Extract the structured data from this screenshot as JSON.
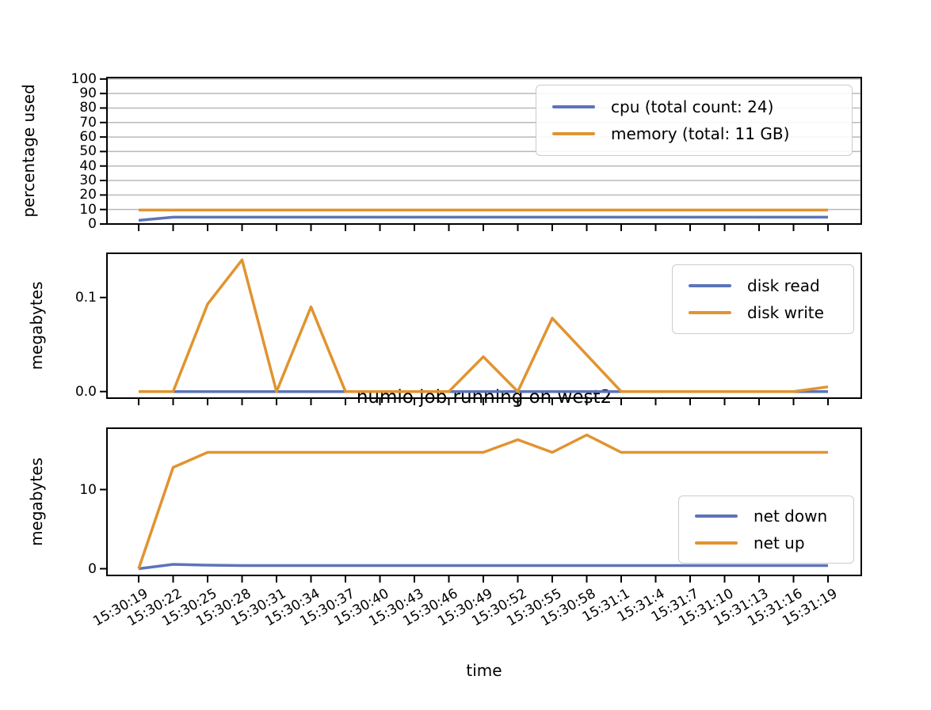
{
  "figure": {
    "title": "numio job running on west2",
    "xlabel": "time",
    "colors": {
      "blue": "#5c74ba",
      "orange": "#e09430",
      "grid": "#b9b9b9",
      "spine": "#000000"
    }
  },
  "x_labels": [
    "15:30:19",
    "15:30:22",
    "15:30:25",
    "15:30:28",
    "15:30:31",
    "15:30:34",
    "15:30:37",
    "15:30:40",
    "15:30:43",
    "15:30:46",
    "15:30:49",
    "15:30:52",
    "15:30:55",
    "15:30:58",
    "15:31:1",
    "15:31:4",
    "15:31:7",
    "15:31:10",
    "15:31:13",
    "15:31:16",
    "15:31:19"
  ],
  "chart_data": [
    {
      "type": "line",
      "ylabel": "percentage used",
      "ylim": [
        0,
        101
      ],
      "grid": true,
      "legend_position": "upper right",
      "ytick_values": [
        0,
        10,
        20,
        30,
        40,
        50,
        60,
        70,
        80,
        90,
        100
      ],
      "ytick_labels": [
        "0",
        "10",
        "20",
        "30",
        "40",
        "50",
        "60",
        "70",
        "80",
        "90",
        "100"
      ],
      "series": [
        {
          "key": "cpu",
          "name": "cpu (total count: 24)",
          "color": "blue",
          "values": [
            2.5,
            4.7,
            4.7,
            4.7,
            4.7,
            4.7,
            4.7,
            4.7,
            4.7,
            4.7,
            4.7,
            4.7,
            4.7,
            4.7,
            4.7,
            4.7,
            4.7,
            4.7,
            4.7,
            4.7,
            4.7
          ]
        },
        {
          "key": "memory",
          "name": "memory (total: 11 GB)",
          "color": "orange",
          "values": [
            9.6,
            9.6,
            9.6,
            9.6,
            9.6,
            9.6,
            9.6,
            9.6,
            9.6,
            9.6,
            9.6,
            9.6,
            9.6,
            9.6,
            9.6,
            9.6,
            9.6,
            9.6,
            9.6,
            9.6,
            9.6
          ]
        }
      ]
    },
    {
      "type": "line",
      "ylabel": "megabytes",
      "ylim": [
        -0.007,
        0.147
      ],
      "grid": false,
      "legend_position": "upper right",
      "ytick_values": [
        0.0,
        0.1
      ],
      "ytick_labels": [
        "0.0",
        "0.1"
      ],
      "series": [
        {
          "key": "disk-read",
          "name": "disk read",
          "color": "blue",
          "values": [
            0,
            0,
            0,
            0,
            0,
            0,
            0,
            0,
            0,
            0,
            0,
            0,
            0,
            0,
            0,
            0,
            0,
            0,
            0,
            0,
            0
          ]
        },
        {
          "key": "disk-write",
          "name": "disk write",
          "color": "orange",
          "values": [
            0,
            0,
            0.093,
            0.14,
            0,
            0.09,
            0,
            0,
            0,
            0,
            0.037,
            0,
            0.078,
            0.039,
            0,
            0,
            0,
            0,
            0,
            0,
            0.005
          ]
        }
      ]
    },
    {
      "type": "line",
      "ylabel": "megabytes",
      "ylim": [
        -0.85,
        17.75
      ],
      "grid": false,
      "legend_position": "center right",
      "ytick_values": [
        0,
        10
      ],
      "ytick_labels": [
        "0",
        "10"
      ],
      "series": [
        {
          "key": "net-down",
          "name": "net down",
          "color": "blue",
          "values": [
            0,
            0.55,
            0.45,
            0.4,
            0.4,
            0.4,
            0.4,
            0.4,
            0.4,
            0.4,
            0.4,
            0.4,
            0.4,
            0.4,
            0.4,
            0.4,
            0.4,
            0.4,
            0.4,
            0.4,
            0.4
          ]
        },
        {
          "key": "net-up",
          "name": "net up",
          "color": "orange",
          "values": [
            0,
            12.8,
            14.7,
            14.7,
            14.7,
            14.7,
            14.7,
            14.7,
            14.7,
            14.7,
            14.7,
            16.3,
            14.7,
            16.9,
            14.7,
            14.7,
            14.7,
            14.7,
            14.7,
            14.7,
            14.7
          ]
        }
      ]
    }
  ]
}
